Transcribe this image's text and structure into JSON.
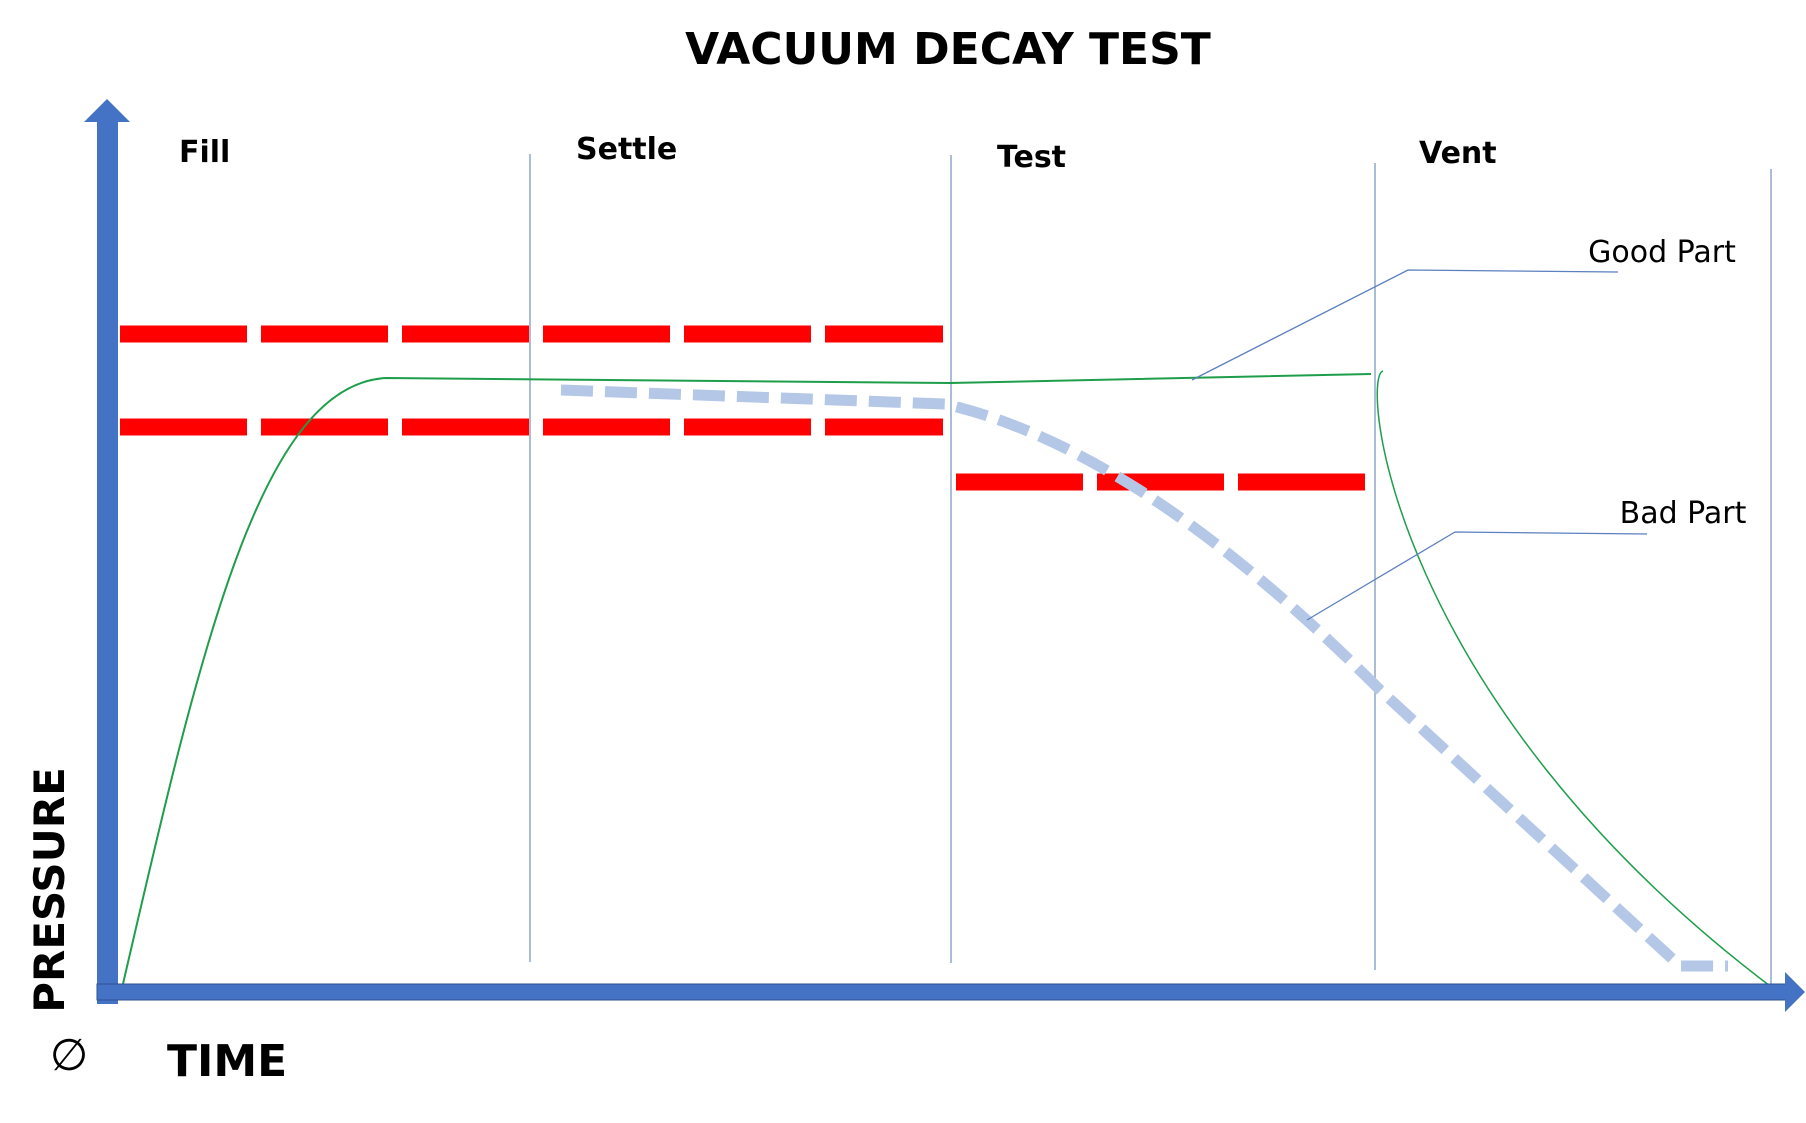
{
  "title": "VACUUM DECAY TEST",
  "phases": [
    "Fill",
    "Settle",
    "Test",
    "Vent"
  ],
  "curves": {
    "good": "Good Part",
    "bad": "Bad Part"
  },
  "axes": {
    "y": "PRESSURE",
    "x": "TIME",
    "origin": "∅"
  }
}
